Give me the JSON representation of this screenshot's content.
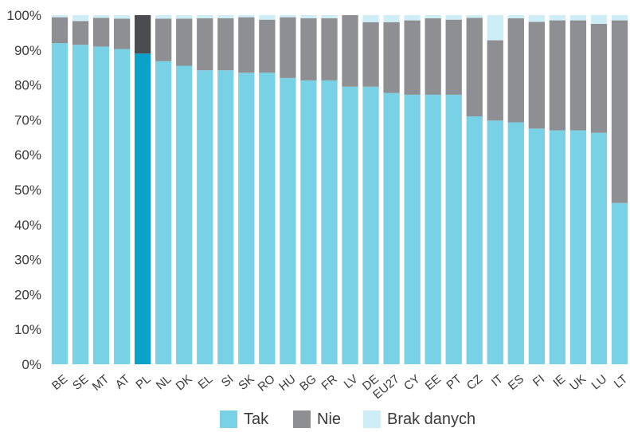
{
  "chart_data": {
    "type": "bar",
    "stacked": true,
    "categories": [
      "BE",
      "SE",
      "MT",
      "AT",
      "PL",
      "NL",
      "DK",
      "EL",
      "SI",
      "SK",
      "RO",
      "HU",
      "BG",
      "FR",
      "LV",
      "DE",
      "EU27",
      "CY",
      "EE",
      "PT",
      "CZ",
      "IT",
      "ES",
      "FI",
      "IE",
      "UK",
      "LU",
      "LT"
    ],
    "series": [
      {
        "name": "Tak",
        "values": [
          92,
          91.5,
          91,
          90.3,
          89,
          86.8,
          85.5,
          84.2,
          84.2,
          83.5,
          83.5,
          82,
          81.3,
          81.3,
          79.5,
          79.5,
          77.7,
          77.2,
          77.2,
          77.2,
          71,
          69.8,
          69.3,
          67.5,
          67,
          67,
          66.3,
          46.2
        ]
      },
      {
        "name": "Nie",
        "values": [
          7.4,
          6.8,
          8.2,
          8.7,
          11,
          12.2,
          13.5,
          14.9,
          14.9,
          15.9,
          15.2,
          17.4,
          17.8,
          17.8,
          20.5,
          18.5,
          20.3,
          21.3,
          21.9,
          21.5,
          28.2,
          23,
          29.8,
          30.6,
          31.5,
          31.5,
          31.2,
          52.3
        ]
      },
      {
        "name": "Brak danych",
        "values": [
          0.6,
          1.7,
          0.8,
          1,
          0,
          1,
          1,
          0.9,
          0.9,
          0.6,
          1.3,
          0.6,
          0.9,
          0.9,
          0,
          2,
          2,
          1.5,
          0.9,
          1.3,
          0.8,
          7.2,
          0.9,
          1.9,
          1.5,
          1.5,
          2.5,
          1.5
        ]
      }
    ],
    "colors": {
      "Tak": "#79d1e6",
      "Nie": "#8e8f92",
      "Brak danych": "#cdeef6"
    },
    "highlight": {
      "category": "PL",
      "colors": [
        "#0aa2c9",
        "#4b4c4f",
        "#cdeef6"
      ]
    },
    "yticks": [
      "0%",
      "10%",
      "20%",
      "30%",
      "40%",
      "50%",
      "60%",
      "70%",
      "80%",
      "90%",
      "100%"
    ],
    "ylim": [
      0,
      100
    ],
    "legend_position": "bottom-center",
    "grid": false
  },
  "legend": [
    {
      "label": "Tak",
      "color": "#79d1e6"
    },
    {
      "label": "Nie",
      "color": "#8e8f92"
    },
    {
      "label": "Brak danych",
      "color": "#cdeef6"
    }
  ]
}
